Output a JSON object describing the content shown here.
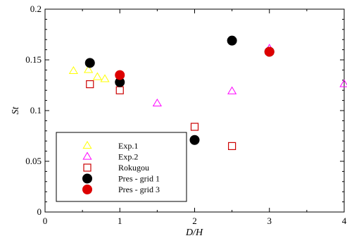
{
  "chart_data": {
    "type": "scatter",
    "title": "",
    "xlabel": "D/H",
    "ylabel": "St",
    "xlim": [
      0,
      4
    ],
    "ylim": [
      0,
      0.2
    ],
    "xticks": [
      0,
      1,
      2,
      3,
      4
    ],
    "xtick_labels": [
      "0",
      "1",
      "2",
      "3",
      "4"
    ],
    "yticks": [
      0,
      0.05,
      0.1,
      0.15,
      0.2
    ],
    "ytick_labels": [
      "0",
      "0.05",
      "0.1",
      "0.15",
      "0.2"
    ],
    "grid": false,
    "legend_position": "bottom-left",
    "series": [
      {
        "name": "Exp.1",
        "marker": "triangle-open",
        "color": "#ffff00",
        "x": [
          0.38,
          0.58,
          0.7,
          0.8
        ],
        "y": [
          0.139,
          0.14,
          0.133,
          0.131
        ]
      },
      {
        "name": "Exp.2",
        "marker": "triangle-open",
        "color": "#ff00ff",
        "x": [
          1.0,
          1.5,
          2.5,
          3.0,
          4.0
        ],
        "y": [
          0.129,
          0.107,
          0.119,
          0.161,
          0.126
        ]
      },
      {
        "name": "Rokugou",
        "marker": "square-open",
        "color": "#cc0000",
        "x": [
          0.6,
          1.0,
          2.0,
          2.5
        ],
        "y": [
          0.126,
          0.12,
          0.084,
          0.065
        ]
      },
      {
        "name": "Pres - grid 1",
        "marker": "circle-filled",
        "color": "#000000",
        "x": [
          0.6,
          1.0,
          2.0,
          2.5,
          3.0
        ],
        "y": [
          0.147,
          0.128,
          0.071,
          0.169,
          0.158
        ]
      },
      {
        "name": "Pres - grid 3",
        "marker": "circle-filled",
        "color": "#dd0000",
        "x": [
          1.0,
          3.0
        ],
        "y": [
          0.135,
          0.158
        ]
      }
    ]
  }
}
